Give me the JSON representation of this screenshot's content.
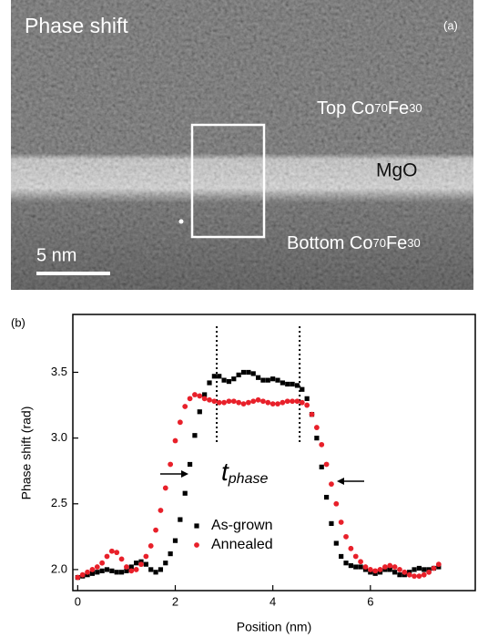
{
  "image_panel": {
    "title": "Phase shift",
    "label": "(a)",
    "top_label": [
      "Top Co",
      "70",
      "Fe",
      "30"
    ],
    "middle_label": "MgO",
    "bottom_label": [
      "Bottom Co",
      "70",
      "Fe",
      "30"
    ],
    "scale_bar": "5 nm"
  },
  "chart_data": {
    "type": "scatter",
    "panel_label": "(b)",
    "x_label": "Position (nm)",
    "y_label": "Phase shift (rad)",
    "x": [
      0,
      0.1,
      0.2,
      0.3,
      0.4,
      0.5,
      0.6,
      0.7,
      0.8,
      0.9,
      1.0,
      1.1,
      1.2,
      1.3,
      1.4,
      1.5,
      1.6,
      1.7,
      1.8,
      1.9,
      2.0,
      2.1,
      2.2,
      2.3,
      2.4,
      2.5,
      2.6,
      2.7,
      2.8,
      2.9,
      3.0,
      3.1,
      3.2,
      3.3,
      3.4,
      3.5,
      3.6,
      3.7,
      3.8,
      3.9,
      4.0,
      4.1,
      4.2,
      4.3,
      4.4,
      4.5,
      4.6,
      4.7,
      4.8,
      4.9,
      5.0,
      5.1,
      5.2,
      5.3,
      5.4,
      5.5,
      5.6,
      5.7,
      5.8,
      5.9,
      6.0,
      6.1,
      6.2,
      6.3,
      6.4,
      6.5,
      6.6,
      6.7,
      6.8,
      6.9,
      7.0,
      7.1,
      7.2,
      7.3,
      7.4
    ],
    "series": [
      {
        "name": "As-grown",
        "color": "#000000",
        "marker": "square",
        "values": [
          1.94,
          1.95,
          1.96,
          1.97,
          1.98,
          1.99,
          2.0,
          1.99,
          1.98,
          1.98,
          1.99,
          2.02,
          2.05,
          2.06,
          2.04,
          2.0,
          1.98,
          2.0,
          2.05,
          2.12,
          2.22,
          2.38,
          2.58,
          2.8,
          3.02,
          3.2,
          3.33,
          3.42,
          3.47,
          3.47,
          3.44,
          3.43,
          3.45,
          3.48,
          3.5,
          3.5,
          3.49,
          3.46,
          3.44,
          3.44,
          3.45,
          3.44,
          3.42,
          3.41,
          3.41,
          3.4,
          3.37,
          3.3,
          3.18,
          3.0,
          2.78,
          2.55,
          2.35,
          2.2,
          2.1,
          2.05,
          2.03,
          2.02,
          2.02,
          2.0,
          1.98,
          1.97,
          1.98,
          2.0,
          2.0,
          1.98,
          1.96,
          1.96,
          1.98,
          2.0,
          2.01,
          2.0,
          2.0,
          2.01,
          2.02
        ]
      },
      {
        "name": "Annealed",
        "color": "#e8202a",
        "marker": "circle",
        "values": [
          1.94,
          1.96,
          1.98,
          2.0,
          2.02,
          2.05,
          2.1,
          2.14,
          2.13,
          2.08,
          2.02,
          1.99,
          2.0,
          2.04,
          2.1,
          2.18,
          2.3,
          2.45,
          2.62,
          2.8,
          2.98,
          3.12,
          3.24,
          3.3,
          3.33,
          3.32,
          3.3,
          3.29,
          3.28,
          3.27,
          3.27,
          3.28,
          3.28,
          3.27,
          3.26,
          3.27,
          3.28,
          3.29,
          3.28,
          3.27,
          3.26,
          3.26,
          3.27,
          3.28,
          3.28,
          3.28,
          3.27,
          3.25,
          3.18,
          3.08,
          2.95,
          2.8,
          2.65,
          2.5,
          2.36,
          2.25,
          2.16,
          2.1,
          2.06,
          2.02,
          2.0,
          1.99,
          2.0,
          2.02,
          2.03,
          2.02,
          2.0,
          1.98,
          1.96,
          1.95,
          1.95,
          1.96,
          1.98,
          2.01,
          2.04
        ]
      }
    ],
    "xlim": [
      -0.1,
      8.15
    ],
    "ylim": [
      1.84,
      3.94
    ],
    "xticks": [
      0,
      2,
      4,
      6
    ],
    "yticks": [
      {
        "value": 2,
        "label": "2.0"
      },
      2.5,
      {
        "value": 3,
        "label": "3.0"
      },
      3.5
    ],
    "vlines": [
      2.85,
      4.55
    ],
    "annotation": "t",
    "annotation_sub": "phase",
    "legend": "lower center"
  }
}
